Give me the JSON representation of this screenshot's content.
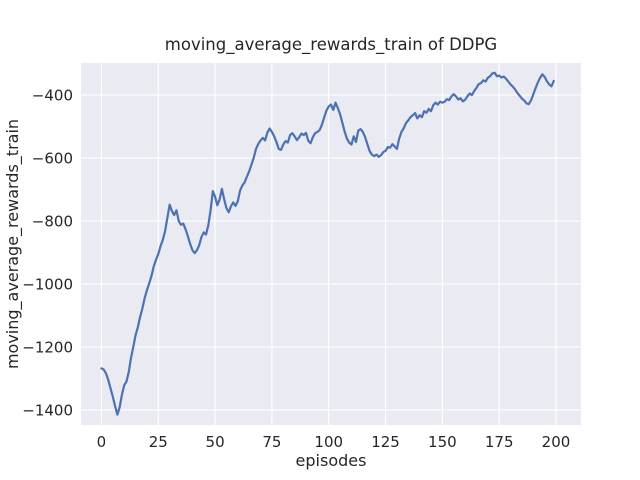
{
  "window": {
    "kind": "matplotlib figure",
    "background": "#ffffff"
  },
  "chart_data": {
    "type": "line",
    "title": "moving_average_rewards_train of DDPG",
    "xlabel": "episodes",
    "ylabel": "moving_average_rewards_train",
    "grid": true,
    "legend": false,
    "xlim": [
      -9,
      211
    ],
    "ylim": [
      -1448,
      -298
    ],
    "xticks": {
      "values": [
        0,
        25,
        50,
        75,
        100,
        125,
        150,
        175,
        200
      ],
      "labels": [
        "0",
        "25",
        "50",
        "75",
        "100",
        "125",
        "150",
        "175",
        "200"
      ]
    },
    "yticks": {
      "values": [
        -400,
        -600,
        -800,
        -1000,
        -1200,
        -1400
      ],
      "labels": [
        "−400",
        "−600",
        "−800",
        "−1000",
        "−1200",
        "−1400"
      ]
    },
    "style": {
      "axes_background": "#eaeaf2",
      "grid_color": "#ffffff",
      "line_color": "#4c72b0",
      "text_color": "#262626"
    },
    "x": [
      0,
      1,
      2,
      3,
      4,
      5,
      6,
      7,
      8,
      9,
      10,
      11,
      12,
      13,
      14,
      15,
      16,
      17,
      18,
      19,
      20,
      21,
      22,
      23,
      24,
      25,
      26,
      27,
      28,
      29,
      30,
      31,
      32,
      33,
      34,
      35,
      36,
      37,
      38,
      39,
      40,
      41,
      42,
      43,
      44,
      45,
      46,
      47,
      48,
      49,
      50,
      51,
      52,
      53,
      54,
      55,
      56,
      57,
      58,
      59,
      60,
      61,
      62,
      63,
      64,
      65,
      66,
      67,
      68,
      69,
      70,
      71,
      72,
      73,
      74,
      75,
      76,
      77,
      78,
      79,
      80,
      81,
      82,
      83,
      84,
      85,
      86,
      87,
      88,
      89,
      90,
      91,
      92,
      93,
      94,
      95,
      96,
      97,
      98,
      99,
      100,
      101,
      102,
      103,
      104,
      105,
      106,
      107,
      108,
      109,
      110,
      111,
      112,
      113,
      114,
      115,
      116,
      117,
      118,
      119,
      120,
      121,
      122,
      123,
      124,
      125,
      126,
      127,
      128,
      129,
      130,
      131,
      132,
      133,
      134,
      135,
      136,
      137,
      138,
      139,
      140,
      141,
      142,
      143,
      144,
      145,
      146,
      147,
      148,
      149,
      150,
      151,
      152,
      153,
      154,
      155,
      156,
      157,
      158,
      159,
      160,
      161,
      162,
      163,
      164,
      165,
      166,
      167,
      168,
      169,
      170,
      171,
      172,
      173,
      174,
      175,
      176,
      177,
      178,
      179,
      180,
      181,
      182,
      183,
      184,
      185,
      186,
      187,
      188,
      189,
      190,
      191,
      192,
      193,
      194,
      195,
      196,
      197,
      198,
      199
    ],
    "series": [
      {
        "name": "moving_average_rewards_train",
        "color": "#4c72b0",
        "values": [
          -1268,
          -1272,
          -1284,
          -1305,
          -1332,
          -1358,
          -1388,
          -1415,
          -1392,
          -1352,
          -1322,
          -1310,
          -1280,
          -1235,
          -1200,
          -1163,
          -1138,
          -1105,
          -1078,
          -1045,
          -1020,
          -998,
          -975,
          -944,
          -923,
          -905,
          -880,
          -860,
          -832,
          -790,
          -748,
          -768,
          -781,
          -766,
          -800,
          -812,
          -808,
          -826,
          -848,
          -872,
          -892,
          -902,
          -893,
          -877,
          -851,
          -836,
          -843,
          -814,
          -767,
          -705,
          -723,
          -750,
          -731,
          -698,
          -731,
          -759,
          -772,
          -753,
          -741,
          -752,
          -737,
          -703,
          -687,
          -677,
          -659,
          -642,
          -621,
          -599,
          -571,
          -555,
          -544,
          -536,
          -544,
          -519,
          -506,
          -517,
          -531,
          -549,
          -571,
          -574,
          -557,
          -546,
          -551,
          -527,
          -521,
          -531,
          -543,
          -534,
          -522,
          -527,
          -520,
          -545,
          -553,
          -534,
          -521,
          -517,
          -511,
          -494,
          -471,
          -449,
          -436,
          -430,
          -447,
          -424,
          -441,
          -461,
          -488,
          -516,
          -538,
          -551,
          -557,
          -531,
          -549,
          -513,
          -508,
          -517,
          -533,
          -556,
          -578,
          -589,
          -594,
          -589,
          -596,
          -591,
          -581,
          -577,
          -565,
          -567,
          -556,
          -563,
          -571,
          -538,
          -517,
          -505,
          -489,
          -480,
          -470,
          -464,
          -457,
          -474,
          -464,
          -470,
          -451,
          -456,
          -444,
          -451,
          -432,
          -424,
          -430,
          -421,
          -424,
          -421,
          -413,
          -416,
          -404,
          -397,
          -404,
          -414,
          -410,
          -420,
          -415,
          -404,
          -395,
          -400,
          -387,
          -377,
          -365,
          -362,
          -353,
          -357,
          -345,
          -340,
          -331,
          -329,
          -340,
          -338,
          -344,
          -341,
          -348,
          -357,
          -366,
          -373,
          -382,
          -393,
          -402,
          -411,
          -417,
          -426,
          -429,
          -417,
          -398,
          -378,
          -360,
          -345,
          -334,
          -342,
          -356,
          -366,
          -372,
          -355
        ]
      }
    ]
  }
}
